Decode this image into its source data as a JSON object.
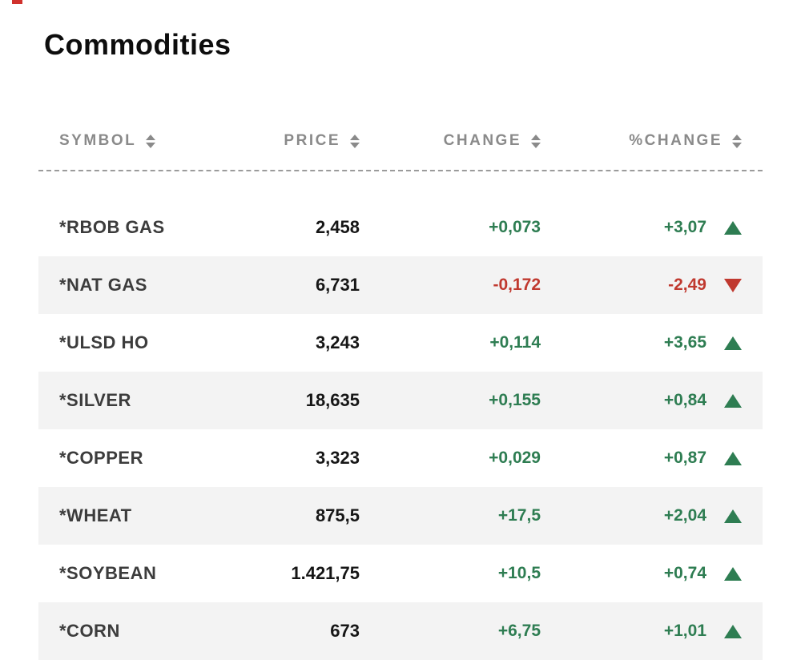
{
  "chart_data": {
    "type": "table",
    "title": "Commodities",
    "columns": [
      "SYMBOL",
      "PRICE",
      "CHANGE",
      "%CHANGE"
    ],
    "rows": [
      {
        "symbol": "*RBOB GAS",
        "price": "2,458",
        "change": "+0,073",
        "percent_change": "+3,07",
        "direction": "up"
      },
      {
        "symbol": "*NAT GAS",
        "price": "6,731",
        "change": "-0,172",
        "percent_change": "-2,49",
        "direction": "down"
      },
      {
        "symbol": "*ULSD HO",
        "price": "3,243",
        "change": "+0,114",
        "percent_change": "+3,65",
        "direction": "up"
      },
      {
        "symbol": "*SILVER",
        "price": "18,635",
        "change": "+0,155",
        "percent_change": "+0,84",
        "direction": "up"
      },
      {
        "symbol": "*COPPER",
        "price": "3,323",
        "change": "+0,029",
        "percent_change": "+0,87",
        "direction": "up"
      },
      {
        "symbol": "*WHEAT",
        "price": "875,5",
        "change": "+17,5",
        "percent_change": "+2,04",
        "direction": "up"
      },
      {
        "symbol": "*SOYBEAN",
        "price": "1.421,75",
        "change": "+10,5",
        "percent_change": "+0,74",
        "direction": "up"
      },
      {
        "symbol": "*CORN",
        "price": "673",
        "change": "+6,75",
        "percent_change": "+1,01",
        "direction": "up"
      }
    ]
  },
  "colors": {
    "up": "#2e7d52",
    "down": "#c0392f",
    "header_text": "#8a8a8a",
    "row_alt_bg": "#f3f3f3",
    "title_color": "#0d0d0d",
    "symbol_color": "#3c3c3c",
    "price_color": "#161616",
    "divider_color": "#9b9b9b",
    "artifact_red": "#d0312d"
  }
}
